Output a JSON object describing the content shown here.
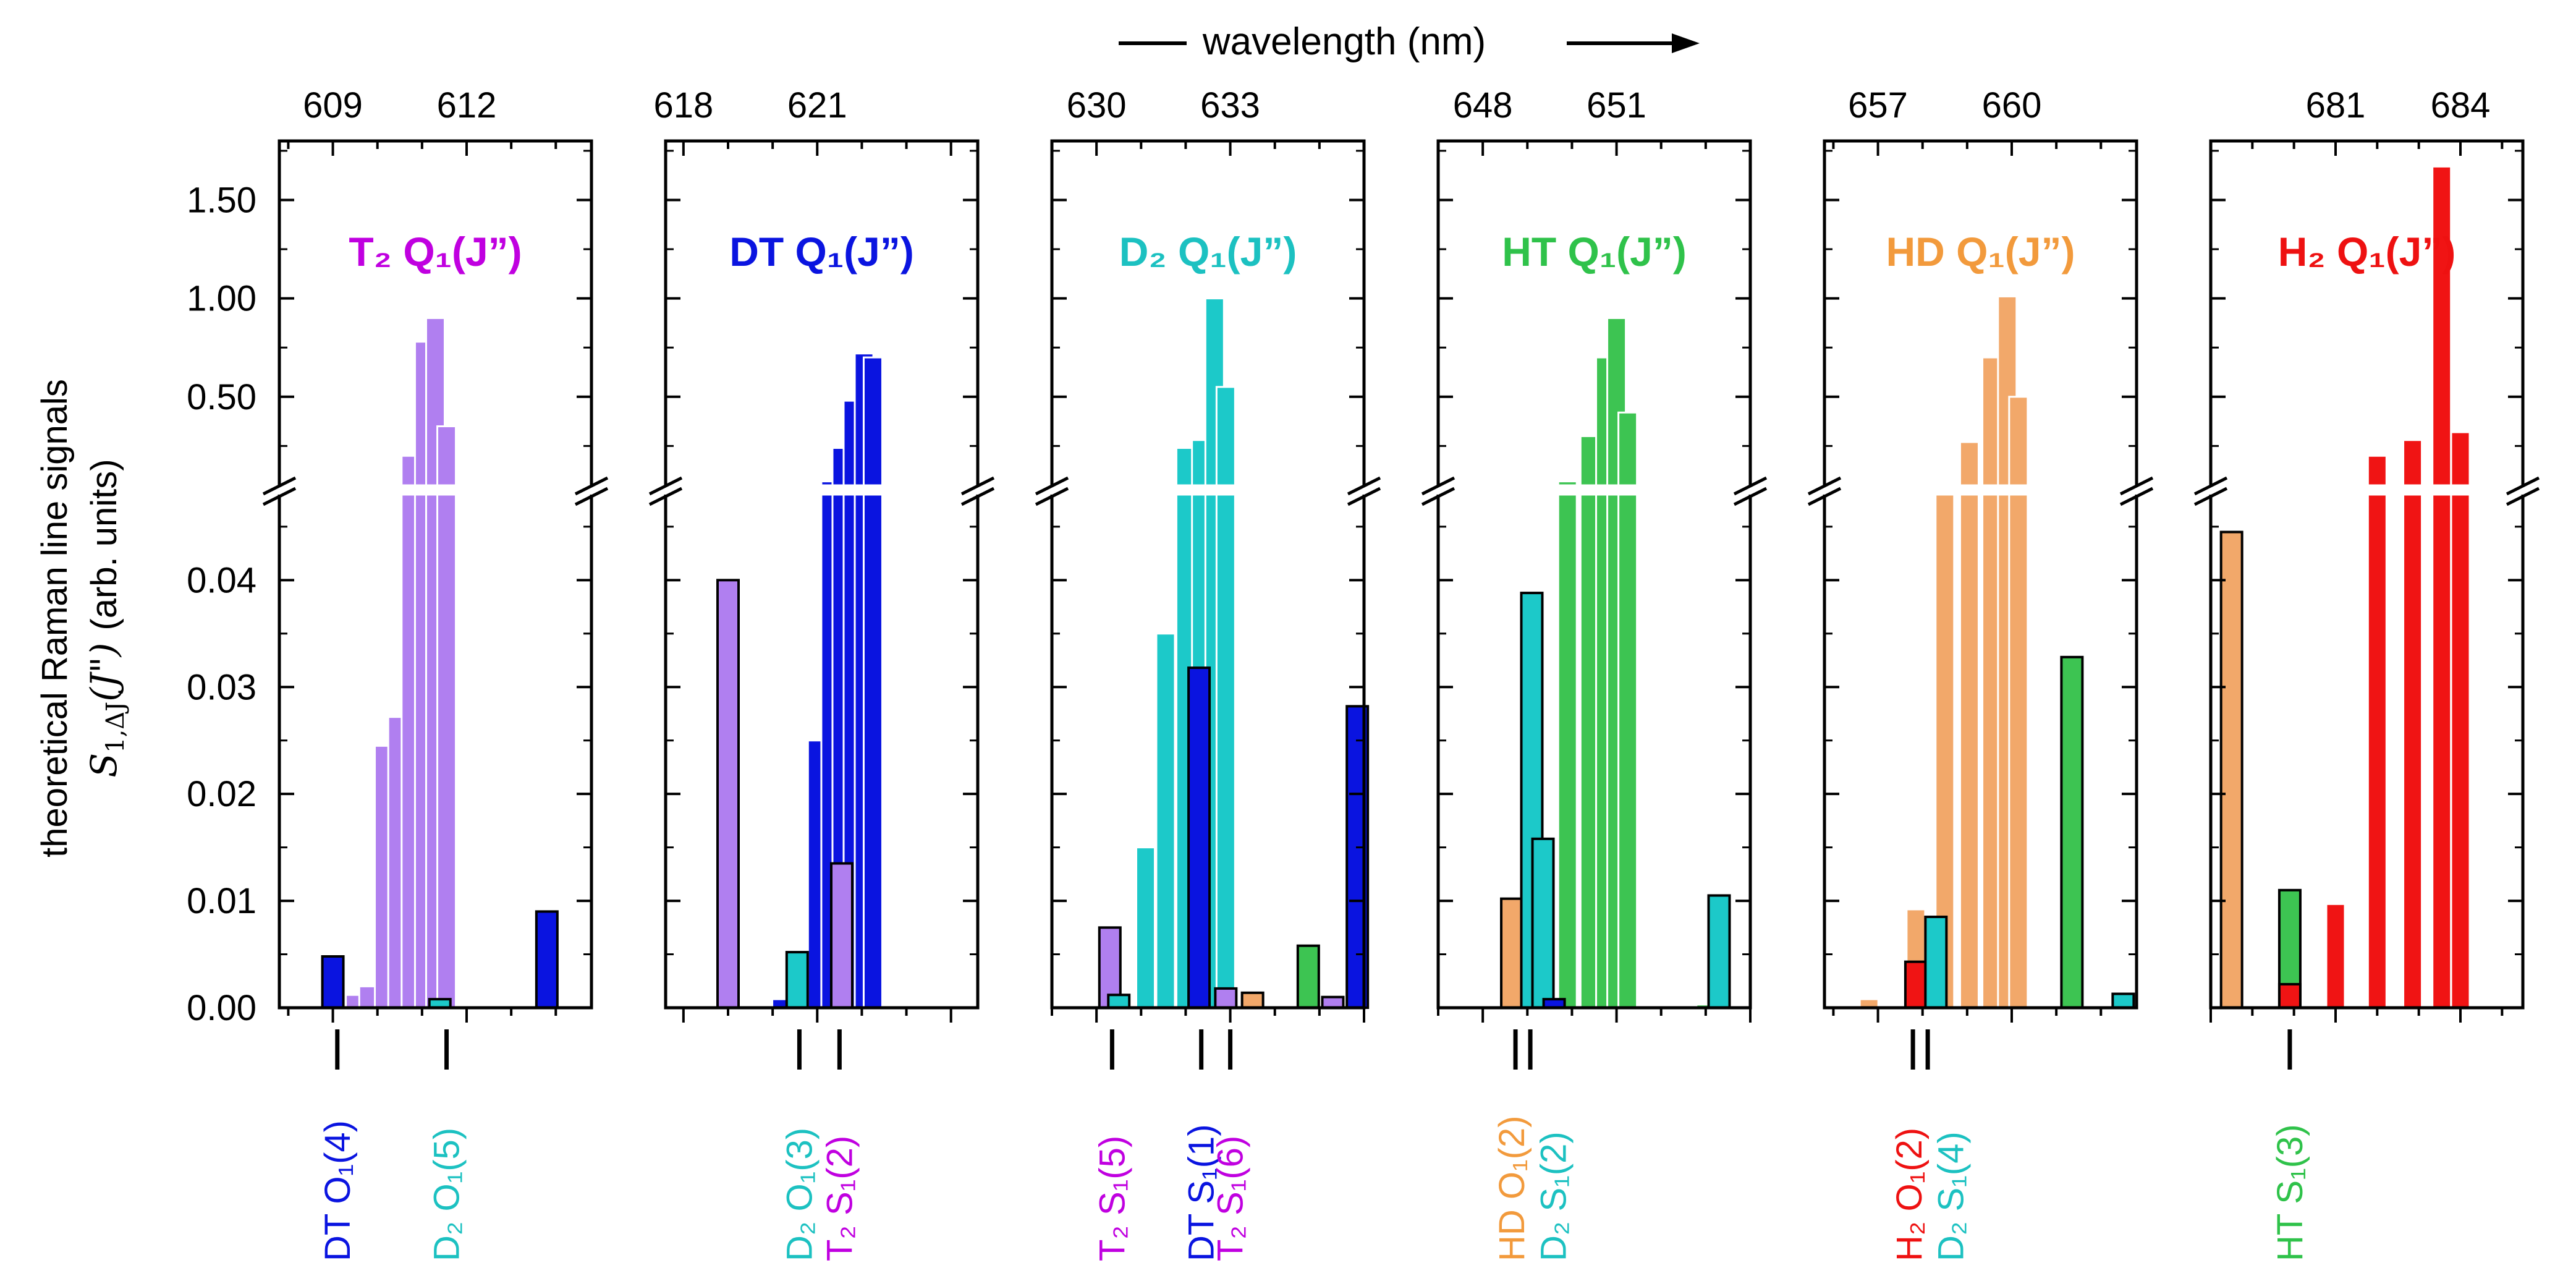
{
  "chart_data": {
    "type": "bar",
    "title": "",
    "top_axis_label": "wavelength  (nm)",
    "ylabel_lines": [
      "theoretical Raman line signals",
      "S₁,ΔJ(J\")  (arb. units)"
    ],
    "ylabel_upper": "theoretical Raman line signals",
    "ylabel_lower": "(arb. units)",
    "y_axis": {
      "broken": true,
      "lower_range": [
        0,
        0.048
      ],
      "upper_range": [
        0.05,
        1.8
      ],
      "lower_ticks": [
        "0.00",
        "0.01",
        "0.02",
        "0.03",
        "0.04"
      ],
      "lower_tick_values": [
        0,
        0.01,
        0.02,
        0.03,
        0.04
      ],
      "upper_ticks": [
        "0.50",
        "1.00",
        "1.50"
      ],
      "upper_tick_values": [
        0.5,
        1.0,
        1.5
      ]
    },
    "colors": {
      "T2": "#b07ff0",
      "DT": "#0a14e0",
      "D2": "#1cc9c9",
      "HT": "#3dc452",
      "HD": "#f2a86a",
      "H2": "#f01414",
      "T2_text": "#c000e0",
      "DT_text": "#0a14e0",
      "D2_text": "#1cc1c1",
      "HT_text": "#2fc24a",
      "HD_text": "#f29a3c",
      "H2_text": "#ee1111"
    },
    "panels": [
      {
        "species": "T2",
        "label": "T₂  Q₁(J”)",
        "xlim": [
          607.8,
          614.8
        ],
        "ticks": [
          609,
          612
        ],
        "tick_labels": [
          "609",
          "612"
        ],
        "bars": [
          {
            "x": 609.0,
            "value": 0.0048,
            "series": "DT",
            "highlight": true
          },
          {
            "x": 609.5,
            "value": 0.0012,
            "series": "T2"
          },
          {
            "x": 609.8,
            "value": 0.002,
            "series": "T2"
          },
          {
            "x": 610.15,
            "value": 0.0245,
            "series": "T2"
          },
          {
            "x": 610.45,
            "value": 0.0272,
            "series": "T2"
          },
          {
            "x": 610.75,
            "value": 0.2,
            "series": "T2"
          },
          {
            "x": 611.05,
            "value": 0.78,
            "series": "T2"
          },
          {
            "x": 611.3,
            "value": 0.9,
            "series": "T2"
          },
          {
            "x": 611.55,
            "value": 0.35,
            "series": "T2"
          },
          {
            "x": 611.4,
            "value": 0.0008,
            "series": "D2",
            "highlight": true
          },
          {
            "x": 613.8,
            "value": 0.009,
            "series": "DT",
            "highlight": true
          }
        ],
        "annotations": [
          {
            "x": 609.1,
            "text": "DT O₁(4)",
            "series": "DT",
            "ticks": 1
          },
          {
            "x": 611.55,
            "text": "D₂ O₁(5)",
            "series": "D2",
            "ticks": 1
          }
        ]
      },
      {
        "species": "DT",
        "label": "DT  Q₁(J”)",
        "xlim": [
          617.6,
          624.6
        ],
        "ticks": [
          618,
          621
        ],
        "tick_labels": [
          "618",
          "621"
        ],
        "bars": [
          {
            "x": 619.0,
            "value": 0.04,
            "series": "T2",
            "highlight": true
          },
          {
            "x": 620.2,
            "value": 0.0008,
            "series": "DT"
          },
          {
            "x": 620.55,
            "value": 0.0052,
            "series": "D2",
            "highlight": true
          },
          {
            "x": 621.0,
            "value": 0.025,
            "series": "DT"
          },
          {
            "x": 621.3,
            "value": 0.07,
            "series": "DT"
          },
          {
            "x": 621.55,
            "value": 0.24,
            "series": "DT"
          },
          {
            "x": 621.8,
            "value": 0.48,
            "series": "DT"
          },
          {
            "x": 622.05,
            "value": 0.72,
            "series": "DT"
          },
          {
            "x": 622.25,
            "value": 0.7,
            "series": "DT"
          },
          {
            "x": 621.55,
            "value": 0.0135,
            "series": "T2",
            "highlight": true
          }
        ],
        "annotations": [
          {
            "x": 620.6,
            "text": "D₂ O₁(3)",
            "series": "D2",
            "ticks": 1
          },
          {
            "x": 621.5,
            "text": "T₂ S₁(2)",
            "series": "T2",
            "ticks": 1
          }
        ]
      },
      {
        "species": "D2",
        "label": "D₂  Q₁(J”)",
        "xlim": [
          629.0,
          636.0
        ],
        "ticks": [
          630,
          633
        ],
        "tick_labels": [
          "630",
          "633"
        ],
        "bars": [
          {
            "x": 630.3,
            "value": 0.0075,
            "series": "T2",
            "highlight": true
          },
          {
            "x": 630.5,
            "value": 0.0012,
            "series": "D2",
            "highlight": true
          },
          {
            "x": 631.1,
            "value": 0.015,
            "series": "D2"
          },
          {
            "x": 631.55,
            "value": 0.035,
            "series": "D2"
          },
          {
            "x": 632.0,
            "value": 0.24,
            "series": "D2"
          },
          {
            "x": 632.35,
            "value": 0.28,
            "series": "D2"
          },
          {
            "x": 632.65,
            "value": 1.0,
            "series": "D2"
          },
          {
            "x": 632.9,
            "value": 0.55,
            "series": "D2"
          },
          {
            "x": 632.3,
            "value": 0.0318,
            "series": "DT",
            "highlight": true
          },
          {
            "x": 632.9,
            "value": 0.0018,
            "series": "T2",
            "highlight": true
          },
          {
            "x": 633.5,
            "value": 0.0014,
            "series": "HD",
            "highlight": true
          },
          {
            "x": 634.75,
            "value": 0.0058,
            "series": "HT",
            "highlight": true
          },
          {
            "x": 635.3,
            "value": 0.001,
            "series": "T2",
            "highlight": true
          },
          {
            "x": 635.85,
            "value": 0.0282,
            "series": "DT",
            "highlight": true
          }
        ],
        "annotations": [
          {
            "x": 630.35,
            "text": "T₂ S₁(5)",
            "series": "T2",
            "ticks": 1
          },
          {
            "x": 632.35,
            "text": "DT S₁(1)",
            "series": "DT",
            "ticks": 1
          },
          {
            "x": 633.0,
            "text": "T₂ S₁(6)",
            "series": "T2",
            "ticks": 1
          }
        ]
      },
      {
        "species": "HT",
        "label": "HT  Q₁(J”)",
        "xlim": [
          647.0,
          654.0
        ],
        "ticks": [
          648,
          651
        ],
        "tick_labels": [
          "648",
          "651"
        ],
        "bars": [
          {
            "x": 647.4,
            "value": 0.0002,
            "series": "HT"
          },
          {
            "x": 648.65,
            "value": 0.0102,
            "series": "HD",
            "highlight": true
          },
          {
            "x": 649.1,
            "value": 0.0388,
            "series": "D2",
            "highlight": true
          },
          {
            "x": 649.35,
            "value": 0.0158,
            "series": "D2",
            "highlight": true
          },
          {
            "x": 649.6,
            "value": 0.0008,
            "series": "DT",
            "highlight": true
          },
          {
            "x": 649.9,
            "value": 0.07,
            "series": "HT"
          },
          {
            "x": 650.4,
            "value": 0.3,
            "series": "HT"
          },
          {
            "x": 650.75,
            "value": 0.7,
            "series": "HT"
          },
          {
            "x": 651.0,
            "value": 0.9,
            "series": "HT"
          },
          {
            "x": 651.25,
            "value": 0.42,
            "series": "HT"
          },
          {
            "x": 653.0,
            "value": 0.0003,
            "series": "HT"
          },
          {
            "x": 653.3,
            "value": 0.0105,
            "series": "D2",
            "highlight": true
          }
        ],
        "annotations": [
          {
            "x": 648.9,
            "text": "HD O₁(2)",
            "series": "HD",
            "ticks": 2
          },
          {
            "x": 649.25,
            "text": "D₂ S₁(2)",
            "series": "D2",
            "ticks": 0
          }
        ]
      },
      {
        "species": "HD",
        "label": "HD  Q₁(J”)",
        "xlim": [
          655.8,
          662.8
        ],
        "ticks": [
          657,
          660
        ],
        "tick_labels": [
          "657",
          "660"
        ],
        "bars": [
          {
            "x": 656.8,
            "value": 0.0008,
            "series": "HD"
          },
          {
            "x": 657.85,
            "value": 0.0092,
            "series": "HD"
          },
          {
            "x": 657.85,
            "value": 0.0043,
            "series": "H2",
            "highlight": true
          },
          {
            "x": 658.3,
            "value": 0.0085,
            "series": "D2",
            "highlight": true
          },
          {
            "x": 658.5,
            "value": 0.055,
            "series": "HD"
          },
          {
            "x": 659.05,
            "value": 0.27,
            "series": "HD"
          },
          {
            "x": 659.55,
            "value": 0.7,
            "series": "HD"
          },
          {
            "x": 659.9,
            "value": 1.01,
            "series": "HD"
          },
          {
            "x": 660.15,
            "value": 0.5,
            "series": "HD"
          },
          {
            "x": 661.35,
            "value": 0.0328,
            "series": "HT",
            "highlight": true
          },
          {
            "x": 662.5,
            "value": 0.0013,
            "series": "D2",
            "highlight": true
          }
        ],
        "annotations": [
          {
            "x": 657.95,
            "text": "H₂ O₁(2)",
            "series": "H2",
            "ticks": 2
          },
          {
            "x": 658.3,
            "text": "D₂ S₁(4)",
            "series": "D2",
            "ticks": 0
          }
        ]
      },
      {
        "species": "H2",
        "label": "H₂  Q₁(J”)",
        "xlim": [
          678.0,
          685.5
        ],
        "ticks": [
          681,
          684
        ],
        "tick_labels": [
          "681",
          "684"
        ],
        "bars": [
          {
            "x": 678.5,
            "value": 0.0445,
            "series": "HD",
            "highlight": true
          },
          {
            "x": 679.9,
            "value": 0.011,
            "series": "HT",
            "highlight": true
          },
          {
            "x": 679.9,
            "value": 0.0022,
            "series": "H2",
            "highlight": true
          },
          {
            "x": 681.0,
            "value": 0.0097,
            "series": "H2"
          },
          {
            "x": 682.0,
            "value": 0.2,
            "series": "H2"
          },
          {
            "x": 682.85,
            "value": 0.28,
            "series": "H2"
          },
          {
            "x": 683.55,
            "value": 1.67,
            "series": "H2"
          },
          {
            "x": 684.0,
            "value": 0.32,
            "series": "H2"
          }
        ],
        "annotations": [
          {
            "x": 679.9,
            "text": "HT S₁(3)",
            "series": "HT",
            "ticks": 1
          }
        ]
      }
    ]
  }
}
